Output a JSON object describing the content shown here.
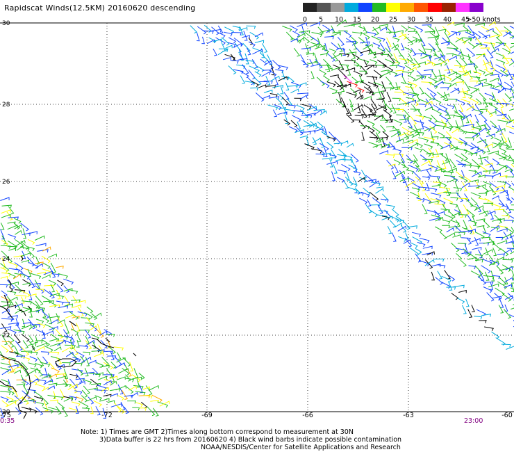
{
  "title": "Rapidscat Winds(12.5KM) 20160620 descending",
  "scale": {
    "colors": [
      "#222222",
      "#555555",
      "#999999",
      "#00aadd",
      "#1144ff",
      "#22bb22",
      "#ffff00",
      "#ffaa00",
      "#ff5500",
      "#ff0000",
      "#992200",
      "#ff33ff",
      "#8800cc"
    ],
    "labels": [
      "0",
      "5",
      "10",
      "15",
      "20",
      "25",
      "30",
      "35",
      "40",
      "45",
      ">50 knots"
    ]
  },
  "map": {
    "lat_labels": [
      "30",
      "28",
      "26",
      "24",
      "22",
      "20"
    ],
    "lon_labels": [
      "-72",
      "-69",
      "-66",
      "-63"
    ],
    "left_lon": "-75",
    "right_lon": "-60",
    "time_left": "0:35",
    "time_right": "23:00",
    "contamination_color": "#000000",
    "grid_style": "dotted"
  },
  "notes": {
    "line1": "Note: 1) Times are GMT 2)Times along bottom correspond to measurement at 30N",
    "line2": "3)Data buffer is 22 hrs from 20160620 4) Black wind barbs indicate possible contamination",
    "line3": "NOAA/NESDIS/Center for Satellite Applications and Research"
  }
}
